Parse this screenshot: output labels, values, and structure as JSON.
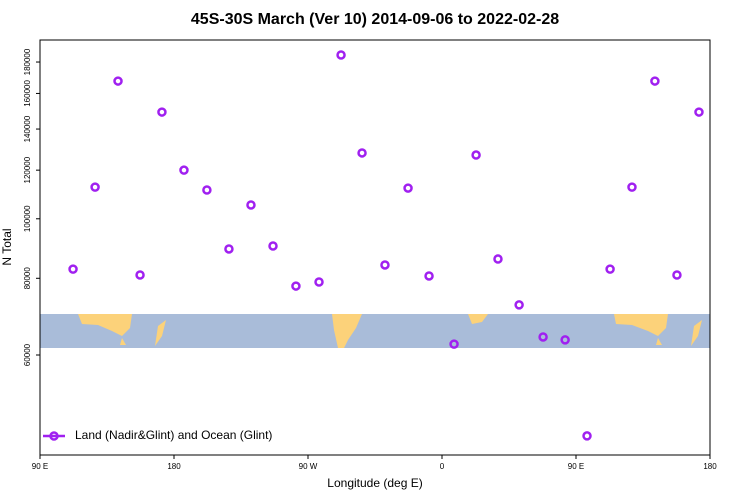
{
  "chart_data": {
    "type": "scatter",
    "title": "45S-30S March (Ver 10)   2014-09-06 to 2022-02-28",
    "x_label": "Longitude (deg E)",
    "y_label": "N Total",
    "xlim": [
      90,
      540
    ],
    "xticks": [
      {
        "value": 90,
        "label": "90 E"
      },
      {
        "value": 180,
        "label": "180"
      },
      {
        "value": 270,
        "label": "90 W"
      },
      {
        "value": 360,
        "label": "0"
      },
      {
        "value": 450,
        "label": "90 E"
      },
      {
        "value": 540,
        "label": "180"
      }
    ],
    "ylim": [
      41240,
      195500
    ],
    "yticks": [
      60000,
      80000,
      100000,
      120000,
      140000,
      160000,
      180000
    ],
    "ylog": true,
    "legend": "bottom-left",
    "x": [
      112.2,
      127,
      142.4,
      157.2,
      171.9,
      186.7,
      202.1,
      216.9,
      231.7,
      246.5,
      261.9,
      277.4,
      292.2,
      306.3,
      321.7,
      337.2,
      351.3,
      368.1,
      382.9,
      397.6,
      411.8,
      427.9,
      442.7,
      457.4,
      472.9,
      487.6,
      503,
      517.8,
      532.6
    ],
    "series": [
      {
        "name": "Land (Nadir&Glint) and Ocean (Glint)",
        "color": "#a020f0",
        "values": [
          82800,
          112600,
          167600,
          81000,
          149200,
          120000,
          111400,
          89300,
          105300,
          90300,
          77700,
          78900,
          184800,
          128000,
          84100,
          112200,
          80700,
          62500,
          127000,
          86000,
          72400,
          64200,
          63500,
          44300,
          82800,
          112600,
          167600,
          81000,
          149200
        ]
      }
    ]
  }
}
